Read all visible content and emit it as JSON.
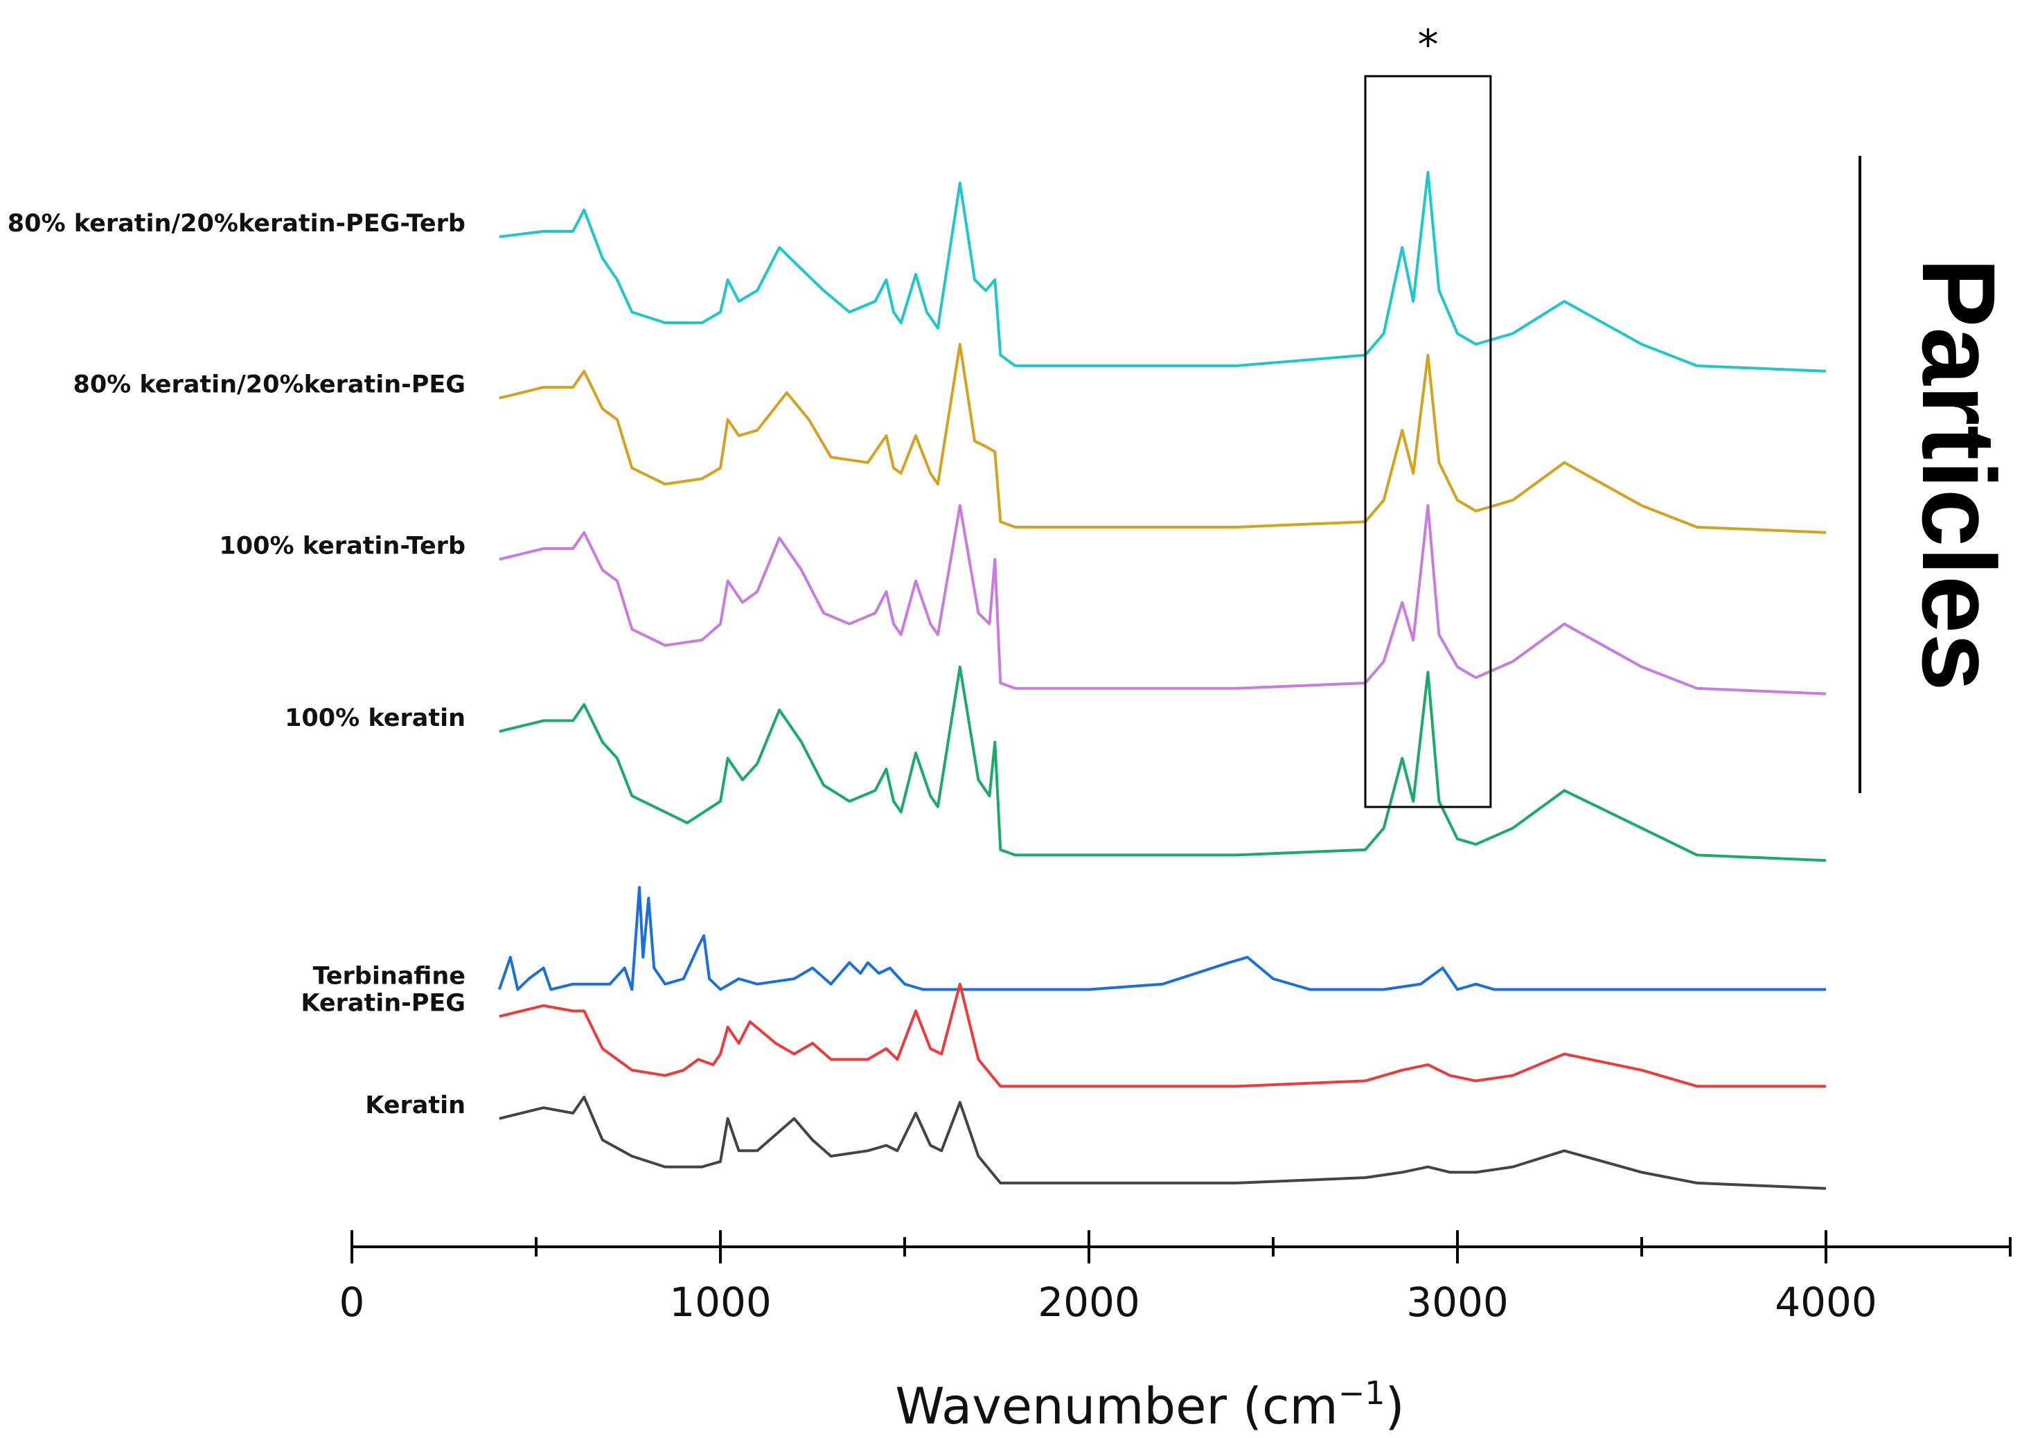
{
  "chart_data": {
    "type": "line",
    "title": "",
    "xlabel": "Wavenumber (cm−1)",
    "xlabel_text": "Wavenumber (cm",
    "xlabel_sup": "−1",
    "xlabel_close": ")",
    "ylabel": "",
    "xlim": [
      0,
      4500
    ],
    "x_ticks": [
      0,
      1000,
      2000,
      3000,
      4000
    ],
    "x_tick_labels": [
      "0",
      "1000",
      "2000",
      "3000",
      "4000"
    ],
    "grid": false,
    "stacked_offset_spectra": true,
    "highlight_region": {
      "x_range": [
        2750,
        3090
      ],
      "marker": "*"
    },
    "group_label": "Particles",
    "series": [
      {
        "name": "80% keratin/20%keratin-PEG-Terb",
        "color": "#1fc8c8",
        "baseline": 0.49,
        "points": [
          [
            400,
            0.74
          ],
          [
            520,
            0.75
          ],
          [
            600,
            0.75
          ],
          [
            630,
            0.79
          ],
          [
            680,
            0.7
          ],
          [
            720,
            0.66
          ],
          [
            760,
            0.6
          ],
          [
            850,
            0.58
          ],
          [
            950,
            0.58
          ],
          [
            1000,
            0.6
          ],
          [
            1020,
            0.66
          ],
          [
            1050,
            0.62
          ],
          [
            1100,
            0.64
          ],
          [
            1160,
            0.72
          ],
          [
            1220,
            0.68
          ],
          [
            1280,
            0.64
          ],
          [
            1350,
            0.6
          ],
          [
            1420,
            0.62
          ],
          [
            1450,
            0.66
          ],
          [
            1470,
            0.6
          ],
          [
            1490,
            0.58
          ],
          [
            1530,
            0.67
          ],
          [
            1560,
            0.6
          ],
          [
            1590,
            0.57
          ],
          [
            1650,
            0.84
          ],
          [
            1690,
            0.66
          ],
          [
            1720,
            0.64
          ],
          [
            1745,
            0.66
          ],
          [
            1760,
            0.52
          ],
          [
            1800,
            0.5
          ],
          [
            2000,
            0.5
          ],
          [
            2400,
            0.5
          ],
          [
            2750,
            0.52
          ],
          [
            2800,
            0.56
          ],
          [
            2850,
            0.72
          ],
          [
            2880,
            0.62
          ],
          [
            2920,
            0.86
          ],
          [
            2950,
            0.64
          ],
          [
            3000,
            0.56
          ],
          [
            3050,
            0.54
          ],
          [
            3150,
            0.56
          ],
          [
            3290,
            0.62
          ],
          [
            3500,
            0.54
          ],
          [
            3650,
            0.5
          ],
          [
            4000,
            0.49
          ]
        ]
      },
      {
        "name": "80% keratin/20%keratin-PEG",
        "color": "#d6a21d",
        "baseline": 0.19,
        "points": [
          [
            400,
            0.44
          ],
          [
            520,
            0.46
          ],
          [
            600,
            0.46
          ],
          [
            630,
            0.49
          ],
          [
            680,
            0.42
          ],
          [
            720,
            0.4
          ],
          [
            760,
            0.31
          ],
          [
            850,
            0.28
          ],
          [
            950,
            0.29
          ],
          [
            1000,
            0.31
          ],
          [
            1020,
            0.4
          ],
          [
            1050,
            0.37
          ],
          [
            1100,
            0.38
          ],
          [
            1180,
            0.45
          ],
          [
            1240,
            0.4
          ],
          [
            1300,
            0.33
          ],
          [
            1400,
            0.32
          ],
          [
            1450,
            0.37
          ],
          [
            1470,
            0.31
          ],
          [
            1490,
            0.3
          ],
          [
            1530,
            0.37
          ],
          [
            1570,
            0.3
          ],
          [
            1590,
            0.28
          ],
          [
            1650,
            0.54
          ],
          [
            1690,
            0.36
          ],
          [
            1720,
            0.35
          ],
          [
            1745,
            0.34
          ],
          [
            1760,
            0.21
          ],
          [
            1800,
            0.2
          ],
          [
            2000,
            0.2
          ],
          [
            2400,
            0.2
          ],
          [
            2750,
            0.21
          ],
          [
            2800,
            0.25
          ],
          [
            2850,
            0.38
          ],
          [
            2880,
            0.3
          ],
          [
            2920,
            0.52
          ],
          [
            2950,
            0.32
          ],
          [
            3000,
            0.25
          ],
          [
            3050,
            0.23
          ],
          [
            3150,
            0.25
          ],
          [
            3290,
            0.32
          ],
          [
            3500,
            0.24
          ],
          [
            3650,
            0.2
          ],
          [
            4000,
            0.19
          ]
        ]
      },
      {
        "name": "100% keratin-Terb",
        "color": "#c87be0",
        "baseline": -0.11,
        "points": [
          [
            400,
            0.14
          ],
          [
            520,
            0.16
          ],
          [
            600,
            0.16
          ],
          [
            630,
            0.19
          ],
          [
            680,
            0.12
          ],
          [
            720,
            0.1
          ],
          [
            760,
            0.01
          ],
          [
            850,
            -0.02
          ],
          [
            950,
            -0.01
          ],
          [
            1000,
            0.02
          ],
          [
            1020,
            0.1
          ],
          [
            1060,
            0.06
          ],
          [
            1100,
            0.08
          ],
          [
            1160,
            0.18
          ],
          [
            1220,
            0.12
          ],
          [
            1280,
            0.04
          ],
          [
            1350,
            0.02
          ],
          [
            1420,
            0.04
          ],
          [
            1450,
            0.08
          ],
          [
            1470,
            0.02
          ],
          [
            1490,
            0.0
          ],
          [
            1530,
            0.1
          ],
          [
            1570,
            0.02
          ],
          [
            1590,
            0.0
          ],
          [
            1650,
            0.24
          ],
          [
            1700,
            0.04
          ],
          [
            1730,
            0.02
          ],
          [
            1745,
            0.14
          ],
          [
            1760,
            -0.09
          ],
          [
            1800,
            -0.1
          ],
          [
            2000,
            -0.1
          ],
          [
            2400,
            -0.1
          ],
          [
            2750,
            -0.09
          ],
          [
            2800,
            -0.05
          ],
          [
            2850,
            0.06
          ],
          [
            2880,
            -0.01
          ],
          [
            2920,
            0.24
          ],
          [
            2950,
            0.0
          ],
          [
            3000,
            -0.06
          ],
          [
            3050,
            -0.08
          ],
          [
            3150,
            -0.05
          ],
          [
            3290,
            0.02
          ],
          [
            3500,
            -0.06
          ],
          [
            3650,
            -0.1
          ],
          [
            4000,
            -0.11
          ]
        ]
      },
      {
        "name": "100% keratin",
        "color": "#1aaa6a",
        "baseline": -0.42,
        "points": [
          [
            400,
            -0.18
          ],
          [
            520,
            -0.16
          ],
          [
            600,
            -0.16
          ],
          [
            630,
            -0.13
          ],
          [
            680,
            -0.2
          ],
          [
            720,
            -0.23
          ],
          [
            760,
            -0.3
          ],
          [
            850,
            -0.33
          ],
          [
            910,
            -0.35
          ],
          [
            1000,
            -0.31
          ],
          [
            1020,
            -0.23
          ],
          [
            1060,
            -0.27
          ],
          [
            1100,
            -0.24
          ],
          [
            1160,
            -0.14
          ],
          [
            1220,
            -0.2
          ],
          [
            1280,
            -0.28
          ],
          [
            1350,
            -0.31
          ],
          [
            1420,
            -0.29
          ],
          [
            1450,
            -0.25
          ],
          [
            1470,
            -0.31
          ],
          [
            1490,
            -0.33
          ],
          [
            1530,
            -0.22
          ],
          [
            1570,
            -0.3
          ],
          [
            1590,
            -0.32
          ],
          [
            1650,
            -0.06
          ],
          [
            1700,
            -0.27
          ],
          [
            1730,
            -0.3
          ],
          [
            1745,
            -0.2
          ],
          [
            1760,
            -0.4
          ],
          [
            1800,
            -0.41
          ],
          [
            2000,
            -0.41
          ],
          [
            2400,
            -0.41
          ],
          [
            2750,
            -0.4
          ],
          [
            2800,
            -0.36
          ],
          [
            2850,
            -0.23
          ],
          [
            2880,
            -0.31
          ],
          [
            2920,
            -0.07
          ],
          [
            2950,
            -0.31
          ],
          [
            3000,
            -0.38
          ],
          [
            3050,
            -0.39
          ],
          [
            3150,
            -0.36
          ],
          [
            3290,
            -0.29
          ],
          [
            3500,
            -0.36
          ],
          [
            3650,
            -0.41
          ],
          [
            4000,
            -0.42
          ]
        ]
      },
      {
        "name": "Terbinafine",
        "color": "#1a6fe0",
        "baseline": -0.66,
        "points": [
          [
            400,
            -0.66
          ],
          [
            430,
            -0.6
          ],
          [
            450,
            -0.66
          ],
          [
            480,
            -0.64
          ],
          [
            520,
            -0.62
          ],
          [
            540,
            -0.66
          ],
          [
            600,
            -0.65
          ],
          [
            700,
            -0.65
          ],
          [
            740,
            -0.62
          ],
          [
            760,
            -0.66
          ],
          [
            780,
            -0.47
          ],
          [
            790,
            -0.6
          ],
          [
            805,
            -0.49
          ],
          [
            820,
            -0.62
          ],
          [
            850,
            -0.65
          ],
          [
            900,
            -0.64
          ],
          [
            940,
            -0.58
          ],
          [
            955,
            -0.56
          ],
          [
            970,
            -0.64
          ],
          [
            1000,
            -0.66
          ],
          [
            1050,
            -0.64
          ],
          [
            1100,
            -0.65
          ],
          [
            1200,
            -0.64
          ],
          [
            1250,
            -0.62
          ],
          [
            1300,
            -0.65
          ],
          [
            1350,
            -0.61
          ],
          [
            1380,
            -0.63
          ],
          [
            1400,
            -0.61
          ],
          [
            1430,
            -0.63
          ],
          [
            1460,
            -0.62
          ],
          [
            1500,
            -0.65
          ],
          [
            1550,
            -0.66
          ],
          [
            1700,
            -0.66
          ],
          [
            2000,
            -0.66
          ],
          [
            2200,
            -0.65
          ],
          [
            2380,
            -0.61
          ],
          [
            2430,
            -0.6
          ],
          [
            2500,
            -0.64
          ],
          [
            2600,
            -0.66
          ],
          [
            2800,
            -0.66
          ],
          [
            2900,
            -0.65
          ],
          [
            2960,
            -0.62
          ],
          [
            3000,
            -0.66
          ],
          [
            3050,
            -0.65
          ],
          [
            3100,
            -0.66
          ],
          [
            4000,
            -0.66
          ]
        ]
      },
      {
        "name": "Keratin-PEG",
        "color": "#ee3a3a",
        "baseline": -0.84,
        "points": [
          [
            400,
            -0.71
          ],
          [
            520,
            -0.69
          ],
          [
            600,
            -0.7
          ],
          [
            630,
            -0.7
          ],
          [
            680,
            -0.77
          ],
          [
            760,
            -0.81
          ],
          [
            850,
            -0.82
          ],
          [
            900,
            -0.81
          ],
          [
            940,
            -0.79
          ],
          [
            980,
            -0.8
          ],
          [
            1000,
            -0.78
          ],
          [
            1020,
            -0.73
          ],
          [
            1050,
            -0.76
          ],
          [
            1080,
            -0.72
          ],
          [
            1150,
            -0.76
          ],
          [
            1200,
            -0.78
          ],
          [
            1250,
            -0.76
          ],
          [
            1300,
            -0.79
          ],
          [
            1400,
            -0.79
          ],
          [
            1450,
            -0.77
          ],
          [
            1480,
            -0.79
          ],
          [
            1530,
            -0.7
          ],
          [
            1570,
            -0.77
          ],
          [
            1600,
            -0.78
          ],
          [
            1650,
            -0.65
          ],
          [
            1700,
            -0.79
          ],
          [
            1760,
            -0.84
          ],
          [
            1800,
            -0.84
          ],
          [
            2000,
            -0.84
          ],
          [
            2400,
            -0.84
          ],
          [
            2750,
            -0.83
          ],
          [
            2850,
            -0.81
          ],
          [
            2920,
            -0.8
          ],
          [
            2980,
            -0.82
          ],
          [
            3050,
            -0.83
          ],
          [
            3150,
            -0.82
          ],
          [
            3290,
            -0.78
          ],
          [
            3500,
            -0.81
          ],
          [
            3650,
            -0.84
          ],
          [
            4000,
            -0.84
          ]
        ]
      },
      {
        "name": "Keratin",
        "color": "#444444",
        "baseline": -1.03,
        "points": [
          [
            400,
            -0.9
          ],
          [
            520,
            -0.88
          ],
          [
            600,
            -0.89
          ],
          [
            630,
            -0.86
          ],
          [
            680,
            -0.94
          ],
          [
            760,
            -0.97
          ],
          [
            850,
            -0.99
          ],
          [
            950,
            -0.99
          ],
          [
            1000,
            -0.98
          ],
          [
            1020,
            -0.9
          ],
          [
            1050,
            -0.96
          ],
          [
            1100,
            -0.96
          ],
          [
            1200,
            -0.9
          ],
          [
            1250,
            -0.94
          ],
          [
            1300,
            -0.97
          ],
          [
            1400,
            -0.96
          ],
          [
            1450,
            -0.95
          ],
          [
            1480,
            -0.96
          ],
          [
            1530,
            -0.89
          ],
          [
            1570,
            -0.95
          ],
          [
            1600,
            -0.96
          ],
          [
            1650,
            -0.87
          ],
          [
            1700,
            -0.97
          ],
          [
            1760,
            -1.02
          ],
          [
            1800,
            -1.02
          ],
          [
            2000,
            -1.02
          ],
          [
            2400,
            -1.02
          ],
          [
            2750,
            -1.01
          ],
          [
            2850,
            -1.0
          ],
          [
            2920,
            -0.99
          ],
          [
            2980,
            -1.0
          ],
          [
            3050,
            -1.0
          ],
          [
            3150,
            -0.99
          ],
          [
            3290,
            -0.96
          ],
          [
            3500,
            -1.0
          ],
          [
            3650,
            -1.02
          ],
          [
            4000,
            -1.03
          ]
        ]
      }
    ]
  }
}
